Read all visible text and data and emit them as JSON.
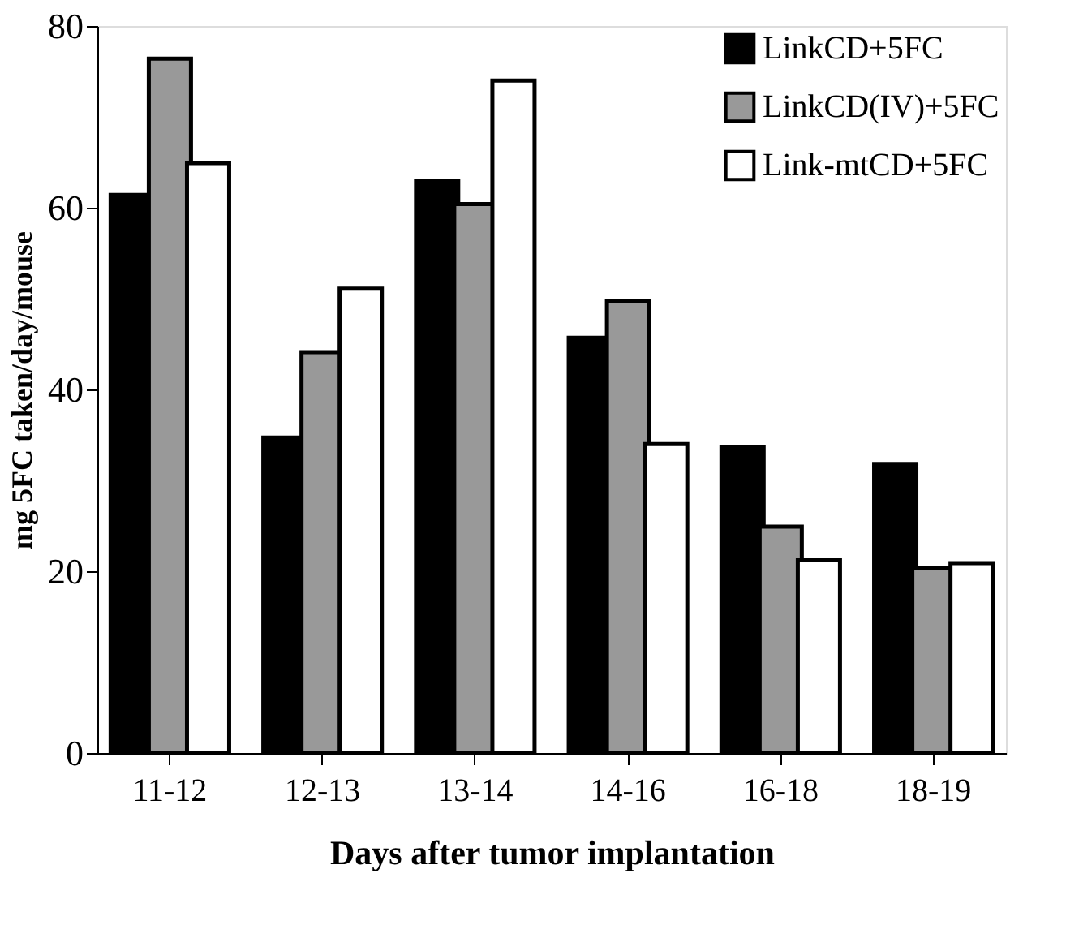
{
  "chart_data": {
    "type": "bar",
    "xlabel": "Days after tumor implantation",
    "ylabel": "mg 5FC taken/day/mouse",
    "categories": [
      "11-12",
      "12-13",
      "13-14",
      "14-16",
      "16-18",
      "18-19"
    ],
    "series": [
      {
        "name": "LinkCD+5FC",
        "color": "#000000",
        "values": [
          61.4,
          34.7,
          63.0,
          45.7,
          33.7,
          31.8
        ]
      },
      {
        "name": "LinkCD(IV)+5FC",
        "color": "#999999",
        "values": [
          76.4,
          44.1,
          60.4,
          49.7,
          24.9,
          20.4
        ]
      },
      {
        "name": "Link-mtCD+5FC",
        "color": "#ffffff",
        "values": [
          64.9,
          51.1,
          74.0,
          34.0,
          21.2,
          20.9
        ]
      }
    ],
    "ylim": [
      0,
      80
    ],
    "yticks": [
      0,
      20,
      40,
      60,
      80
    ],
    "grid": false,
    "legend": "top right"
  }
}
